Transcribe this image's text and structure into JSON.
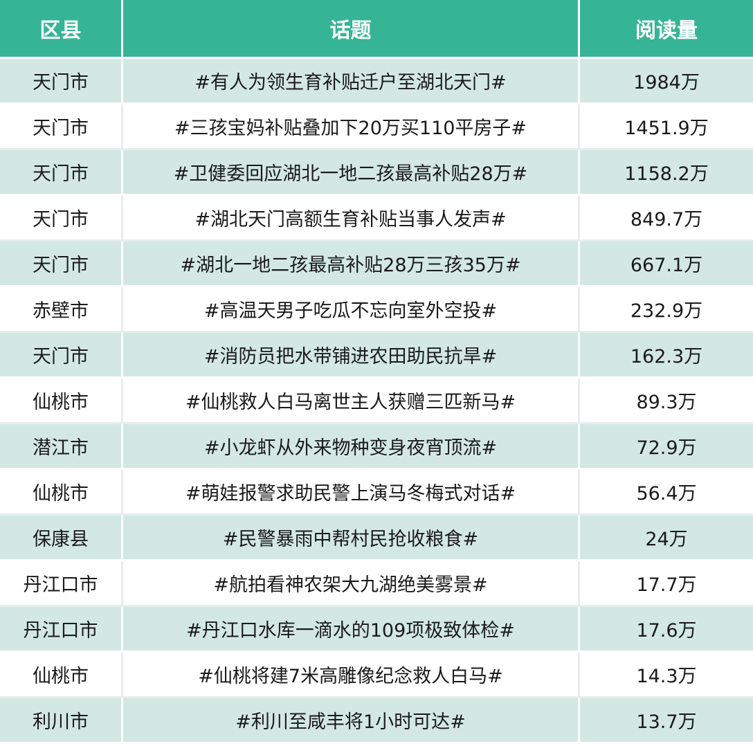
{
  "table": {
    "header": [
      "区县",
      "话题",
      "阅读量"
    ],
    "rows": [
      [
        "天门市",
        "#有人为领生育补贴迁户至湖北天门#",
        "1984万"
      ],
      [
        "天门市",
        "#三孩宝妈补贴叠加下20万买110平房子#",
        "1451.9万"
      ],
      [
        "天门市",
        "#卫健委回应湖北一地二孩最高补贴28万#",
        "1158.2万"
      ],
      [
        "天门市",
        "#湖北天门高额生育补贴当事人发声#",
        "849.7万"
      ],
      [
        "天门市",
        "#湖北一地二孩最高补贴28万三孩35万#",
        "667.1万"
      ],
      [
        "赤壁市",
        "#高温天男子吃瓜不忘向室外空投#",
        "232.9万"
      ],
      [
        "天门市",
        "#消防员把水带铺进农田助民抗旱#",
        "162.3万"
      ],
      [
        "仙桃市",
        "#仙桃救人白马离世主人获赠三匹新马#",
        "89.3万"
      ],
      [
        "潜江市",
        "#小龙虾从外来物种变身夜宵顶流#",
        "72.9万"
      ],
      [
        "仙桃市",
        "#萌娃报警求助民警上演马冬梅式对话#",
        "56.4万"
      ],
      [
        "保康县",
        "#民警暴雨中帮村民抢收粮食#",
        "24万"
      ],
      [
        "丹江口市",
        "#航拍看神农架大九湖绝美雾景#",
        "17.7万"
      ],
      [
        "丹江口市",
        "#丹江口水库一滴水的109项极致体检#",
        "17.6万"
      ],
      [
        "仙桃市",
        "#仙桃将建7米高雕像纪念救人白马#",
        "14.3万"
      ],
      [
        "利川市",
        "#利川至咸丰将1小时可达#",
        "13.7万"
      ]
    ]
  }
}
